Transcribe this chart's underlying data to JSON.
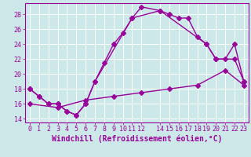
{
  "xlabel": "Windchill (Refroidissement éolien,°C)",
  "bg_color": "#cce8e8",
  "grid_color": "#ffffff",
  "line_color": "#990099",
  "xlim": [
    -0.5,
    23.5
  ],
  "ylim": [
    13.5,
    29.5
  ],
  "xticks": [
    0,
    1,
    2,
    3,
    4,
    5,
    6,
    7,
    8,
    9,
    10,
    11,
    12,
    14,
    15,
    16,
    17,
    18,
    19,
    20,
    21,
    22,
    23
  ],
  "yticks": [
    14,
    16,
    18,
    20,
    22,
    24,
    26,
    28
  ],
  "line1_x": [
    0,
    1,
    2,
    3,
    4,
    5,
    6,
    7,
    8,
    9,
    10,
    11,
    12,
    14,
    15,
    16,
    17,
    18,
    19,
    20,
    21,
    22,
    23
  ],
  "line1_y": [
    18,
    17,
    16,
    16,
    15,
    14.5,
    16,
    19,
    21.5,
    24,
    25.5,
    27.5,
    29,
    28.5,
    28,
    27.5,
    27.5,
    25,
    24,
    22,
    22,
    24,
    19
  ],
  "line2_x": [
    0,
    1,
    2,
    3,
    4,
    5,
    6,
    7,
    11,
    14,
    19,
    20,
    22,
    23
  ],
  "line2_y": [
    18,
    17,
    16,
    16,
    15,
    14.5,
    16,
    19,
    27.5,
    28.5,
    24,
    22,
    22,
    19
  ],
  "line3_x": [
    0,
    3,
    6,
    9,
    12,
    15,
    18,
    21,
    23
  ],
  "line3_y": [
    16,
    15.5,
    16.5,
    17,
    17.5,
    18,
    18.5,
    20.5,
    18.5
  ],
  "xlabel_fontsize": 7,
  "tick_fontsize": 6
}
